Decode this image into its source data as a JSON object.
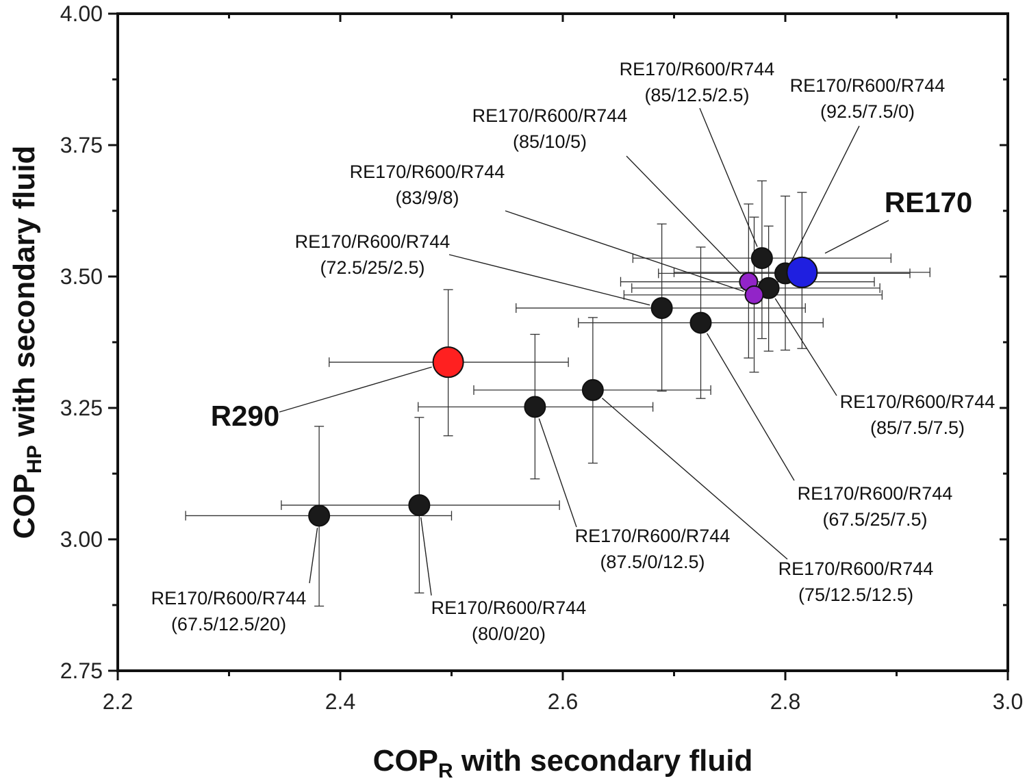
{
  "chart_data": {
    "type": "scatter",
    "title": "",
    "xlabel": {
      "main": "COP",
      "sub": "R",
      "rest": " with secondary fluid"
    },
    "ylabel": {
      "main": "COP",
      "sub": "HP",
      "rest": " with secondary fluid"
    },
    "xlim": [
      2.2,
      3.0
    ],
    "ylim": [
      2.75,
      4.0
    ],
    "xticks": [
      2.2,
      2.4,
      2.6,
      2.8,
      3.0
    ],
    "xtick_labels": [
      "2.2",
      "2.4",
      "2.6",
      "2.8",
      "3.0"
    ],
    "yticks": [
      2.75,
      3.0,
      3.25,
      3.5,
      3.75,
      4.0
    ],
    "ytick_labels": [
      "2.75",
      "3.00",
      "3.25",
      "3.50",
      "3.75",
      "4.00"
    ],
    "grid": false,
    "colors": {
      "r290": "#ff2020",
      "re170": "#1f1fe0",
      "blend": "#1a1a1a",
      "highlight": "#9224c8",
      "axis": "#111111"
    },
    "points": [
      {
        "id": "r290",
        "name": "R290",
        "x": 2.497,
        "y": 3.337,
        "xerr": [
          2.39,
          2.605
        ],
        "yerr": [
          3.197,
          3.475
        ],
        "color_key": "r290",
        "size": "large",
        "label": [
          "R290"
        ],
        "bold": true
      },
      {
        "id": "re170",
        "name": "RE170",
        "x": 2.815,
        "y": 3.508,
        "xerr": [
          2.7,
          2.93
        ],
        "yerr": [
          3.363,
          3.66
        ],
        "color_key": "re170",
        "size": "large",
        "label": [
          "RE170"
        ],
        "bold": true
      },
      {
        "id": "p-67-12-20",
        "x": 2.381,
        "y": 3.045,
        "xerr": [
          2.261,
          2.5
        ],
        "yerr": [
          2.873,
          3.215
        ],
        "color_key": "blend",
        "label": [
          "RE170/R600/R744",
          "(67.5/12.5/20)"
        ]
      },
      {
        "id": "p-80-0-20",
        "x": 2.471,
        "y": 3.065,
        "xerr": [
          2.347,
          2.597
        ],
        "yerr": [
          2.898,
          3.232
        ],
        "color_key": "blend",
        "label": [
          "RE170/R600/R744",
          "(80/0/20)"
        ]
      },
      {
        "id": "p-87-0-12",
        "x": 2.575,
        "y": 3.252,
        "xerr": [
          2.47,
          2.681
        ],
        "yerr": [
          3.115,
          3.39
        ],
        "color_key": "blend",
        "label": [
          "RE170/R600/R744",
          "(87.5/0/12.5)"
        ]
      },
      {
        "id": "p-75-12-12",
        "x": 2.627,
        "y": 3.284,
        "xerr": [
          2.52,
          2.733
        ],
        "yerr": [
          3.145,
          3.422
        ],
        "color_key": "blend",
        "label": [
          "RE170/R600/R744",
          "(75/12.5/12.5)"
        ]
      },
      {
        "id": "p-72-25-2",
        "x": 2.689,
        "y": 3.44,
        "xerr": [
          2.558,
          2.818
        ],
        "yerr": [
          3.282,
          3.6
        ],
        "color_key": "blend",
        "label": [
          "RE170/R600/R744",
          "(72.5/25/2.5)"
        ]
      },
      {
        "id": "p-67-25-7",
        "x": 2.724,
        "y": 3.412,
        "xerr": [
          2.614,
          2.834
        ],
        "yerr": [
          3.268,
          3.556
        ],
        "color_key": "blend",
        "label": [
          "RE170/R600/R744",
          "(67.5/25/7.5)"
        ]
      },
      {
        "id": "p-85-12-2",
        "x": 2.779,
        "y": 3.535,
        "xerr": [
          2.663,
          2.895
        ],
        "yerr": [
          3.382,
          3.682
        ],
        "color_key": "blend",
        "label": [
          "RE170/R600/R744",
          "(85/12.5/2.5)"
        ]
      },
      {
        "id": "p-92-7-0",
        "x": 2.8,
        "y": 3.506,
        "xerr": [
          2.686,
          2.912
        ],
        "yerr": [
          3.36,
          3.653
        ],
        "color_key": "blend",
        "label": [
          "RE170/R600/R744",
          "(92.5/7.5/0)"
        ]
      },
      {
        "id": "p-85-7-7",
        "x": 2.785,
        "y": 3.478,
        "xerr": [
          2.662,
          2.885
        ],
        "yerr": [
          3.358,
          3.596
        ],
        "color_key": "blend",
        "label": [
          "RE170/R600/R744",
          "(85/7.5/7.5)"
        ]
      },
      {
        "id": "p-85-10-5",
        "x": 2.767,
        "y": 3.49,
        "xerr": [
          2.652,
          2.88
        ],
        "yerr": [
          3.345,
          3.638
        ],
        "color_key": "highlight",
        "label": [
          "RE170/R600/R744",
          "(85/10/5)"
        ]
      },
      {
        "id": "p-83-9-8",
        "x": 2.772,
        "y": 3.465,
        "xerr": [
          2.655,
          2.887
        ],
        "yerr": [
          3.318,
          3.613
        ],
        "color_key": "highlight",
        "label": [
          "RE170/R600/R744",
          "(83/9/8)"
        ]
      }
    ]
  }
}
